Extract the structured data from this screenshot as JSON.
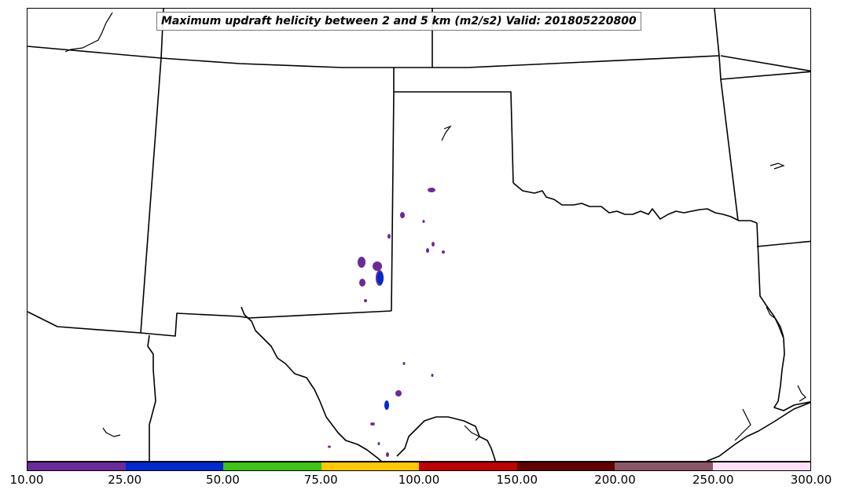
{
  "title": "Maximum updraft helicity between 2 and 5 km (m2/s2) Valid: 201805220800",
  "colorbar": {
    "colors": [
      "#6a2a9a",
      "#0028d0",
      "#3cc418",
      "#ffc800",
      "#c00000",
      "#600000",
      "#8a5668",
      "#fde0f8"
    ],
    "labels": [
      "10.00",
      "25.00",
      "50.00",
      "75.00",
      "100.00",
      "150.00",
      "200.00",
      "250.00",
      "300.00"
    ]
  },
  "colors": {
    "boundary": "#000000",
    "low_helicity": "#6a2a9a",
    "mid_helicity": "#0028d0"
  }
}
